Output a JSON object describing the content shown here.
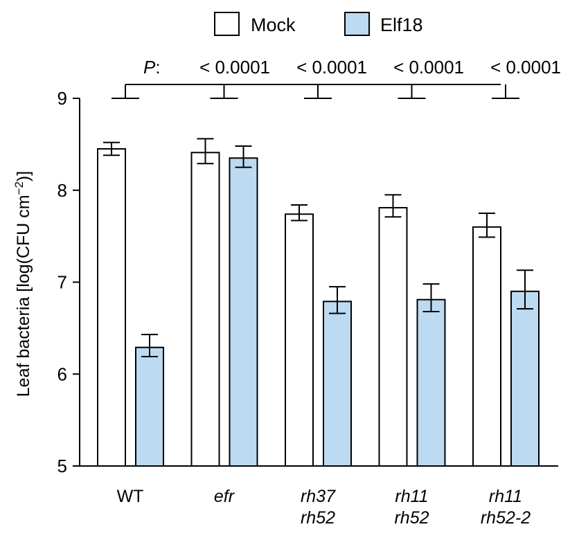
{
  "chart_data": {
    "type": "bar",
    "ylabel": "Leaf bacteria [log(CFU cm⁻²)]",
    "ylabel_prefix": "Leaf bacteria [log(CFU cm",
    "ylabel_exponent": "−2",
    "ylabel_suffix": ")]",
    "ylim": [
      5,
      9
    ],
    "yticks": [
      "5",
      "6",
      "7",
      "8",
      "9"
    ],
    "grid": false,
    "legend_position": "top",
    "categories": [
      {
        "lines": [
          "WT"
        ],
        "italic": false
      },
      {
        "lines": [
          "efr"
        ],
        "italic": true
      },
      {
        "lines": [
          "rh37",
          "rh52"
        ],
        "italic": true
      },
      {
        "lines": [
          "rh11",
          "rh52"
        ],
        "italic": true
      },
      {
        "lines": [
          "rh11",
          "rh52-2"
        ],
        "italic": true
      }
    ],
    "series": [
      {
        "name": "Mock",
        "color": "#ffffff",
        "values": [
          8.45,
          8.41,
          7.74,
          7.81,
          7.6
        ],
        "err_low": [
          0.07,
          0.12,
          0.07,
          0.1,
          0.11
        ],
        "err_high": [
          0.07,
          0.15,
          0.1,
          0.14,
          0.15
        ]
      },
      {
        "name": "Elf18",
        "color": "#bcdaf1",
        "values": [
          6.29,
          8.35,
          6.79,
          6.81,
          6.9
        ],
        "err_low": [
          0.1,
          0.1,
          0.13,
          0.13,
          0.19
        ],
        "err_high": [
          0.14,
          0.13,
          0.16,
          0.17,
          0.23
        ]
      }
    ],
    "significance": {
      "label": "P",
      "separator": ":",
      "reference_category": 0,
      "comparisons": [
        {
          "category": 1,
          "value": "< 0.0001"
        },
        {
          "category": 2,
          "value": "< 0.0001"
        },
        {
          "category": 3,
          "value": "< 0.0001"
        },
        {
          "category": 4,
          "value": "< 0.0001"
        }
      ]
    }
  }
}
